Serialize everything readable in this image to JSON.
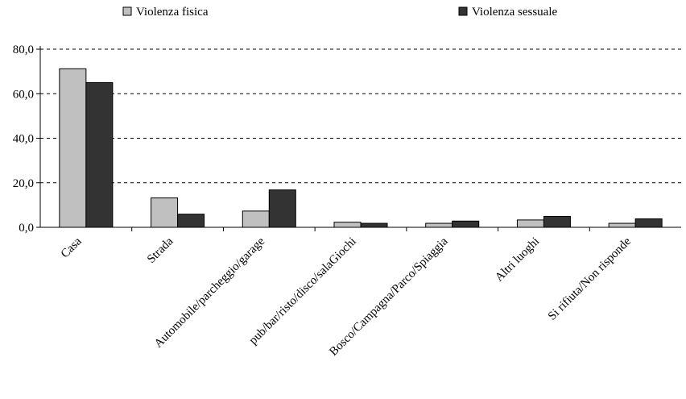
{
  "chart_data": {
    "type": "bar",
    "title": "",
    "xlabel": "",
    "ylabel": "",
    "ylim": [
      0,
      80
    ],
    "yticks": [
      "0,0",
      "20,0",
      "40,0",
      "60,0",
      "80,0"
    ],
    "grid": true,
    "legend_position": "top",
    "categories": [
      "Casa",
      "Strada",
      "Automobile/parcheggio/garage",
      "pub/bar/risto/disco/salaGiochi",
      "Bosco/Campagna/Parco/Spiaggia",
      "Altri luoghi",
      "Si rifiuta/Non risponde"
    ],
    "series": [
      {
        "name": "Violenza fisica",
        "color": "#c0c0c0",
        "values": [
          71.2,
          13.2,
          7.3,
          2.3,
          1.8,
          3.3,
          1.8
        ]
      },
      {
        "name": "Violenza sessuale",
        "color": "#333333",
        "values": [
          65.0,
          5.9,
          16.8,
          1.8,
          2.8,
          4.9,
          3.8
        ]
      }
    ]
  }
}
